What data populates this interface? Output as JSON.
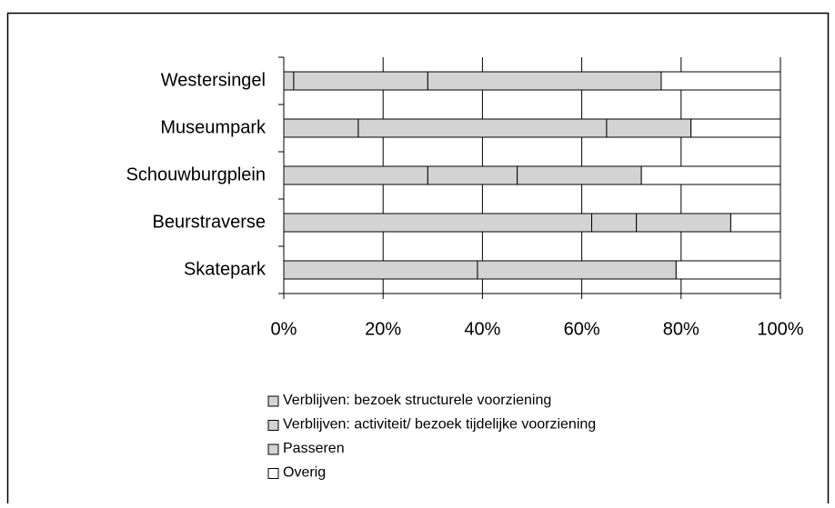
{
  "chart_data": {
    "type": "stacked-barh",
    "categories": [
      "Westersingel",
      "Museumpark",
      "Schouwburgplein",
      "Beurstraverse",
      "Skatepark"
    ],
    "series": [
      {
        "name": "Verblijven: bezoek structurele voorziening",
        "color": "#d3d3d3",
        "values": [
          2,
          15,
          29,
          62,
          39
        ]
      },
      {
        "name": "Verblijven: activiteit/ bezoek tijdelijke voorziening",
        "color": "#d3d3d3",
        "values": [
          27,
          50,
          18,
          9,
          0
        ]
      },
      {
        "name": "Passeren",
        "color": "#d3d3d3",
        "values": [
          47,
          17,
          25,
          19,
          40
        ]
      },
      {
        "name": "Overig",
        "color": "#ffffff",
        "values": [
          24,
          18,
          28,
          10,
          21
        ]
      }
    ],
    "xlim": [
      0,
      100
    ],
    "xticks": [
      {
        "value": 0,
        "label": "0%"
      },
      {
        "value": 20,
        "label": "20%"
      },
      {
        "value": 40,
        "label": "40%"
      },
      {
        "value": 60,
        "label": "60%"
      },
      {
        "value": 80,
        "label": "80%"
      },
      {
        "value": 100,
        "label": "100%"
      }
    ],
    "grid": true
  }
}
